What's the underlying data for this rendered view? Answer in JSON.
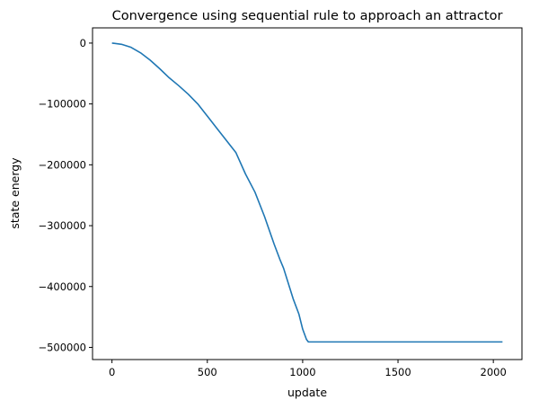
{
  "chart_data": {
    "type": "line",
    "title": "Convergence using sequential rule to approach an attractor",
    "xlabel": "update",
    "ylabel": "state energy",
    "xlim": [
      -102,
      2150
    ],
    "ylim": [
      -520000,
      25000
    ],
    "x_ticks": [
      0,
      500,
      1000,
      1500,
      2000
    ],
    "x_tick_labels": [
      "0",
      "500",
      "1000",
      "1500",
      "2000"
    ],
    "y_ticks": [
      0,
      -100000,
      -200000,
      -300000,
      -400000,
      -500000
    ],
    "y_tick_labels": [
      "0",
      "−100000",
      "−200000",
      "−300000",
      "−400000",
      "−500000"
    ],
    "grid": false,
    "line_color": "#1f77b4",
    "series": [
      {
        "x": [
          0,
          50,
          100,
          150,
          200,
          250,
          300,
          350,
          400,
          450,
          500,
          550,
          600,
          650,
          700,
          750,
          800,
          850,
          880,
          900,
          930,
          950,
          980,
          1000,
          1020,
          1030,
          1100,
          1300,
          1500,
          1700,
          1900,
          2048
        ],
        "y": [
          0,
          -2000,
          -7000,
          -16000,
          -28000,
          -42000,
          -57000,
          -70000,
          -84000,
          -100000,
          -120000,
          -140000,
          -160000,
          -180000,
          -215000,
          -245000,
          -285000,
          -330000,
          -355000,
          -370000,
          -400000,
          -420000,
          -445000,
          -470000,
          -487000,
          -491000,
          -491000,
          -491000,
          -491000,
          -491000,
          -491000,
          -491000
        ]
      }
    ]
  }
}
